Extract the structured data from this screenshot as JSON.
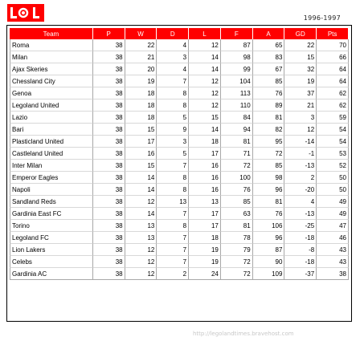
{
  "header": {
    "season": "1996-1997",
    "logo": {
      "name": "legoland-logo",
      "color": "#ff0000"
    }
  },
  "table": {
    "columns": [
      "Team",
      "P",
      "W",
      "D",
      "L",
      "F",
      "A",
      "GD",
      "Pts"
    ],
    "header_color": "#ff0000",
    "rows": [
      [
        "Roma",
        "38",
        "22",
        "4",
        "12",
        "87",
        "65",
        "22",
        "70"
      ],
      [
        "Milan",
        "38",
        "21",
        "3",
        "14",
        "98",
        "83",
        "15",
        "66"
      ],
      [
        "Ajax Skeries",
        "38",
        "20",
        "4",
        "14",
        "99",
        "67",
        "32",
        "64"
      ],
      [
        "Chessland City",
        "38",
        "19",
        "7",
        "12",
        "104",
        "85",
        "19",
        "64"
      ],
      [
        "Genoa",
        "38",
        "18",
        "8",
        "12",
        "113",
        "76",
        "37",
        "62"
      ],
      [
        "Legoland United",
        "38",
        "18",
        "8",
        "12",
        "110",
        "89",
        "21",
        "62"
      ],
      [
        "Lazio",
        "38",
        "18",
        "5",
        "15",
        "84",
        "81",
        "3",
        "59"
      ],
      [
        "Bari",
        "38",
        "15",
        "9",
        "14",
        "94",
        "82",
        "12",
        "54"
      ],
      [
        "Plasticland United",
        "38",
        "17",
        "3",
        "18",
        "81",
        "95",
        "-14",
        "54"
      ],
      [
        "Castleland United",
        "38",
        "16",
        "5",
        "17",
        "71",
        "72",
        "-1",
        "53"
      ],
      [
        "Inter Milan",
        "38",
        "15",
        "7",
        "16",
        "72",
        "85",
        "-13",
        "52"
      ],
      [
        "Emperor Eagles",
        "38",
        "14",
        "8",
        "16",
        "100",
        "98",
        "2",
        "50"
      ],
      [
        "Napoli",
        "38",
        "14",
        "8",
        "16",
        "76",
        "96",
        "-20",
        "50"
      ],
      [
        "Sandland Reds",
        "38",
        "12",
        "13",
        "13",
        "85",
        "81",
        "4",
        "49"
      ],
      [
        "Gardinia East FC",
        "38",
        "14",
        "7",
        "17",
        "63",
        "76",
        "-13",
        "49"
      ],
      [
        "Torino",
        "38",
        "13",
        "8",
        "17",
        "81",
        "106",
        "-25",
        "47"
      ],
      [
        "Legoland FC",
        "38",
        "13",
        "7",
        "18",
        "78",
        "96",
        "-18",
        "46"
      ],
      [
        "Lion Lakers",
        "38",
        "12",
        "7",
        "19",
        "79",
        "87",
        "-8",
        "43"
      ],
      [
        "Celebs",
        "38",
        "12",
        "7",
        "19",
        "72",
        "90",
        "-18",
        "43"
      ],
      [
        "Gardinia AC",
        "38",
        "12",
        "2",
        "24",
        "72",
        "109",
        "-37",
        "38"
      ]
    ]
  },
  "footer": {
    "url": "http://legolandtimes.bravehost.com"
  }
}
